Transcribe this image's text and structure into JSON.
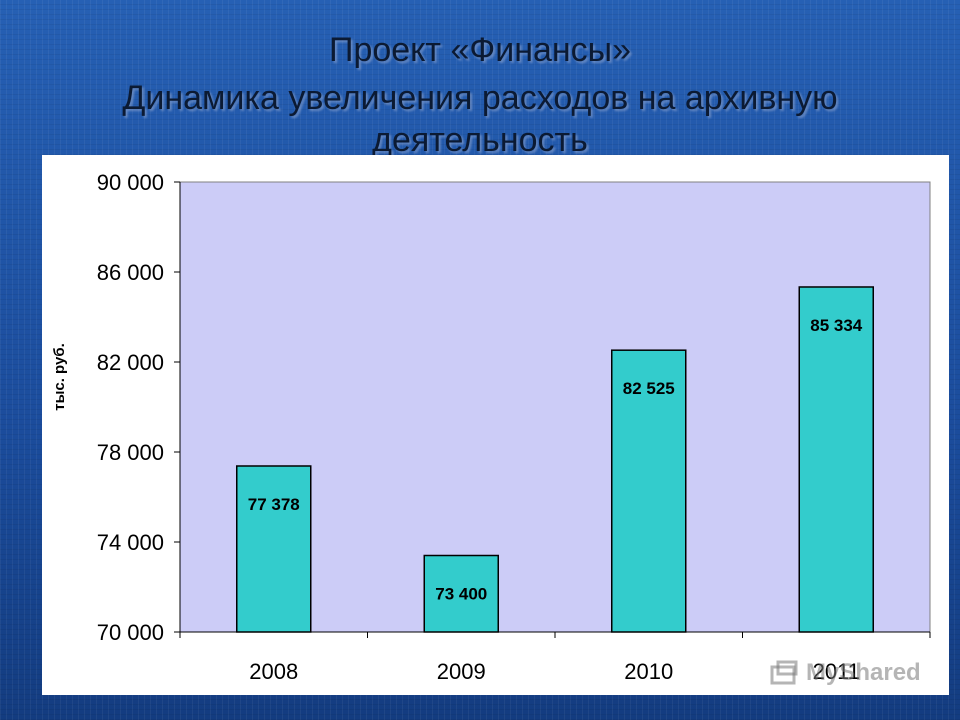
{
  "slide": {
    "title_line1": "Проект «Финансы»",
    "title_line2": "Динамика увеличения расходов на архивную",
    "title_line3": "деятельность"
  },
  "chart_data": {
    "type": "bar",
    "categories": [
      "2008",
      "2009",
      "2010",
      "2011"
    ],
    "values": [
      77378,
      73400,
      82525,
      85334
    ],
    "data_labels": [
      "77 378",
      "73 400",
      "82 525",
      "85 334"
    ],
    "ylabel": "тыс. руб.",
    "xlabel": "",
    "ylim": [
      70000,
      90000
    ],
    "yticks": [
      70000,
      74000,
      78000,
      82000,
      86000,
      90000
    ],
    "ytick_labels": [
      "70 000",
      "74 000",
      "78 000",
      "82 000",
      "86 000",
      "90 000"
    ],
    "grid": false,
    "colors": {
      "plot_background": "#ccccf7",
      "bar_fill": "#33cccc",
      "bar_stroke": "#000000"
    }
  },
  "watermark": {
    "text": "MyShared",
    "icon": "presentation-icon"
  }
}
